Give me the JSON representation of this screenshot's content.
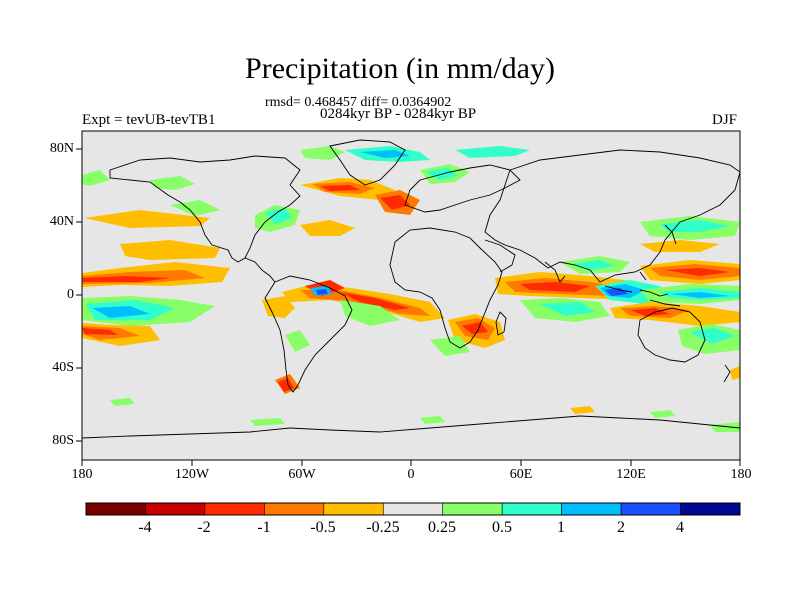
{
  "title": "Precipitation (in mm/day)",
  "stats": "rmsd= 0.468457 diff= 0.0364902",
  "period": "0284kyr BP - 0284kyr BP",
  "experiment": "Expt = tevUB-tevTB1",
  "season": "DJF",
  "lat_labels": [
    "80N",
    "40N",
    "0",
    "40S",
    "80S"
  ],
  "lon_labels": [
    "180",
    "120W",
    "60W",
    "0",
    "60E",
    "120E",
    "180"
  ],
  "colorbar": {
    "colors": [
      "#7a0000",
      "#c60000",
      "#ff2a00",
      "#ff7800",
      "#ffbe00",
      "#e6e6e6",
      "#88ff66",
      "#30ffcc",
      "#00bfff",
      "#1a50ff",
      "#000a90"
    ],
    "labels": [
      "-4",
      "-2",
      "-1",
      "-0.5",
      "-0.25",
      "0.25",
      "0.5",
      "1",
      "2",
      "4"
    ]
  },
  "colors": {
    "background": "#e6e6e6",
    "coastline": "#000000"
  }
}
